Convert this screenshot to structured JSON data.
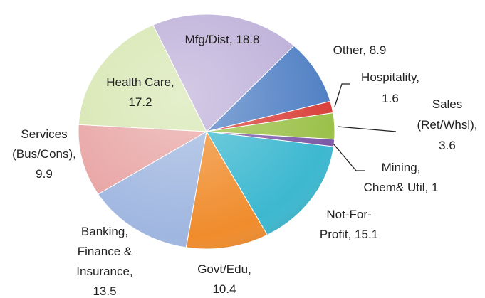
{
  "chart_data": {
    "type": "pie",
    "categories": [
      "Other",
      "Hospitality",
      "Sales\n(Ret/Whsl)",
      "Mining,\nChem& Util",
      "Not-For-\nProfit",
      "Govt/Edu",
      "Banking,\nFinance &\nInsurance",
      "Services\n(Bus/Cons)",
      "Health Care",
      "Mfg/Dist"
    ],
    "values": [
      8.9,
      1.6,
      3.6,
      1,
      15.1,
      10.4,
      13.5,
      9.9,
      17.2,
      18.8
    ],
    "colors": [
      "#4f7fc4",
      "#d9403a",
      "#9cc14a",
      "#7d5aa6",
      "#3cb8d0",
      "#f08c2c",
      "#9fb6e0",
      "#e8a3a3",
      "#d6e6b0",
      "#bcaed8"
    ],
    "label_separator": ","
  }
}
